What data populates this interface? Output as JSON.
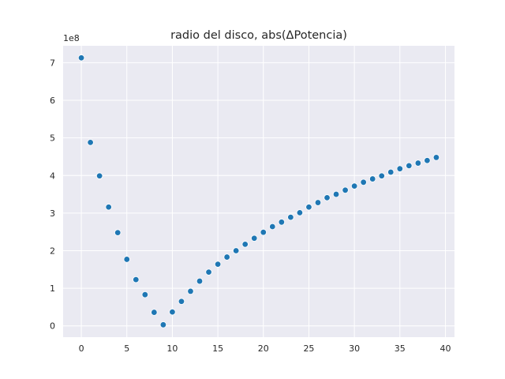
{
  "colors": {
    "plot_background": "#eaeaf2",
    "grid": "#ffffff",
    "marker": "#1f77b4",
    "text": "#262626"
  },
  "chart_data": {
    "type": "scatter",
    "title": "radio del disco, abs(ΔPotencia)",
    "xlabel": "",
    "ylabel": "",
    "y_offset_label": "1e8",
    "xlim": [
      -2,
      41
    ],
    "ylim": [
      -0.3,
      7.45
    ],
    "x_ticks": [
      0,
      5,
      10,
      15,
      20,
      25,
      30,
      35,
      40
    ],
    "y_ticks": [
      0,
      1,
      2,
      3,
      4,
      5,
      6,
      7
    ],
    "grid": true,
    "x": [
      0,
      1,
      2,
      3,
      4,
      5,
      6,
      7,
      8,
      9,
      10,
      11,
      12,
      13,
      14,
      15,
      16,
      17,
      18,
      19,
      20,
      21,
      22,
      23,
      24,
      25,
      26,
      27,
      28,
      29,
      30,
      31,
      32,
      33,
      34,
      35,
      36,
      37,
      38,
      39
    ],
    "y": [
      7.13,
      4.88,
      3.99,
      3.16,
      2.48,
      1.77,
      1.23,
      0.83,
      0.36,
      0.03,
      0.37,
      0.65,
      0.92,
      1.19,
      1.43,
      1.64,
      1.83,
      2.0,
      2.17,
      2.33,
      2.49,
      2.64,
      2.76,
      2.89,
      3.01,
      3.16,
      3.28,
      3.41,
      3.5,
      3.61,
      3.72,
      3.82,
      3.91,
      3.99,
      4.09,
      4.18,
      4.26,
      4.33,
      4.4,
      4.48
    ]
  }
}
